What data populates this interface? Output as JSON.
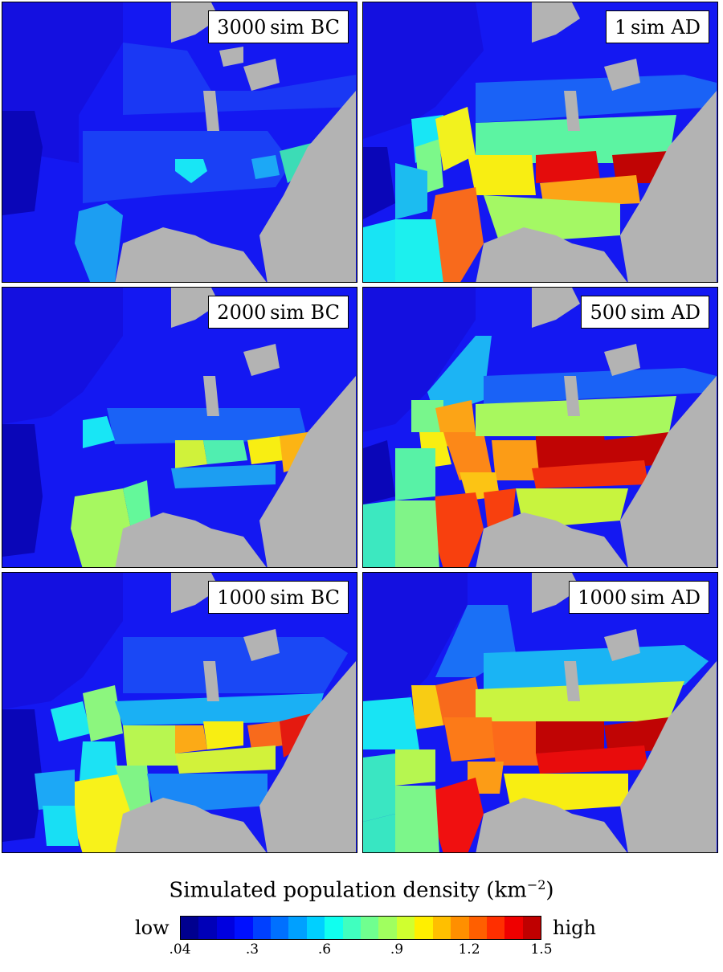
{
  "panels": [
    {
      "label": "3000 sim BC"
    },
    {
      "label": "1 sim AD"
    },
    {
      "label": "2000 sim BC"
    },
    {
      "label": "500 sim AD"
    },
    {
      "label": "1000 sim BC"
    },
    {
      "label": "1000 sim AD"
    }
  ],
  "legend": {
    "title": "Simulated population density",
    "unit": "(km",
    "unit_exp": "−2",
    "unit_close": ")",
    "low": "low",
    "high": "high",
    "ticks": [
      ".04",
      ".3",
      ".6",
      ".9",
      "1.2",
      "1.5"
    ],
    "colors": [
      "#00008f",
      "#0000b8",
      "#0000e0",
      "#0010ff",
      "#0040ff",
      "#0070ff",
      "#00a0ff",
      "#00d0ff",
      "#10ffef",
      "#40ffbf",
      "#70ff8f",
      "#a0ff5f",
      "#d0ff2f",
      "#ffef00",
      "#ffbf00",
      "#ff8f00",
      "#ff5f00",
      "#ff2f00",
      "#ef0000",
      "#bf0000"
    ]
  },
  "colors": {
    "water_gray": "#b3b3b3",
    "background_low": "#1410f0"
  }
}
